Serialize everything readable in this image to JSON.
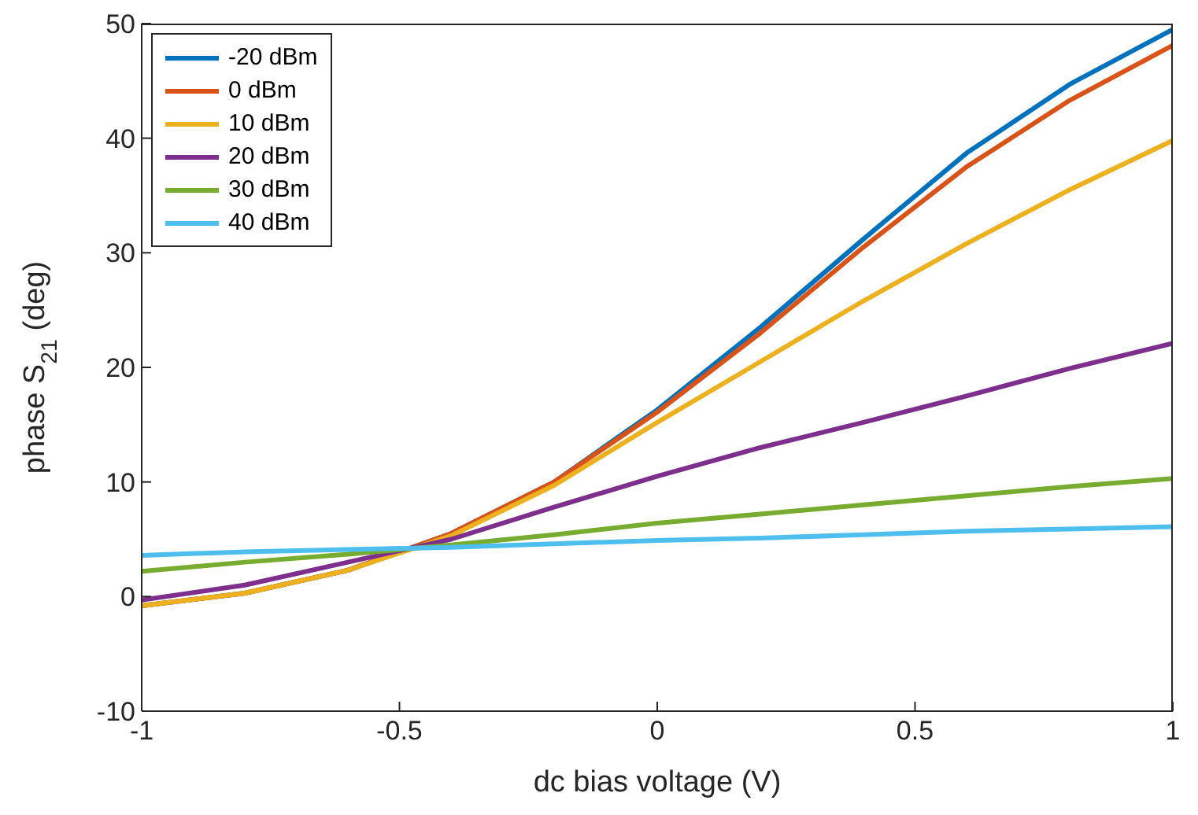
{
  "chart_data": {
    "type": "line",
    "xlabel": "dc bias voltage (V)",
    "ylabel": "phase S$_{21}$ (deg)",
    "x": [
      -1,
      -0.8,
      -0.6,
      -0.4,
      -0.2,
      0,
      0.2,
      0.4,
      0.6,
      0.8,
      1
    ],
    "xlim": [
      -1,
      1
    ],
    "xticks": [
      -1,
      -0.5,
      0,
      0.5,
      1
    ],
    "ylim": [
      -10,
      50
    ],
    "yticks": [
      -10,
      0,
      10,
      20,
      30,
      40,
      50
    ],
    "grid": false,
    "legend": "top left",
    "marker": "none",
    "line_style": "solid",
    "series": [
      {
        "name": "-20 dBm",
        "color": "#0072bd",
        "values": [
          -0.8,
          0.3,
          2.3,
          5.5,
          10,
          16.3,
          23.5,
          31.2,
          38.7,
          44.7,
          49.5
        ]
      },
      {
        "name": "0 dBm",
        "color": "#d95319",
        "values": [
          -0.8,
          0.3,
          2.3,
          5.5,
          10,
          16.1,
          23,
          30.5,
          37.5,
          43.3,
          48.1
        ]
      },
      {
        "name": "10 dBm",
        "color": "#edb120",
        "values": [
          -0.8,
          0.3,
          2.3,
          5.3,
          9.7,
          15.2,
          20.5,
          25.8,
          30.8,
          35.5,
          39.8
        ]
      },
      {
        "name": "20 dBm",
        "color": "#7e2f8e",
        "values": [
          -0.3,
          1,
          3,
          5,
          7.8,
          10.5,
          13,
          15.2,
          17.5,
          19.9,
          22.1
        ]
      },
      {
        "name": "30 dBm",
        "color": "#77ac30",
        "values": [
          2.2,
          3,
          3.7,
          4.5,
          5.4,
          6.4,
          7.2,
          8,
          8.8,
          9.6,
          10.3
        ]
      },
      {
        "name": "40 dBm",
        "color": "#4dbeee",
        "values": [
          3.6,
          3.9,
          4.1,
          4.3,
          4.6,
          4.9,
          5.1,
          5.4,
          5.7,
          5.9,
          6.1
        ]
      }
    ]
  }
}
